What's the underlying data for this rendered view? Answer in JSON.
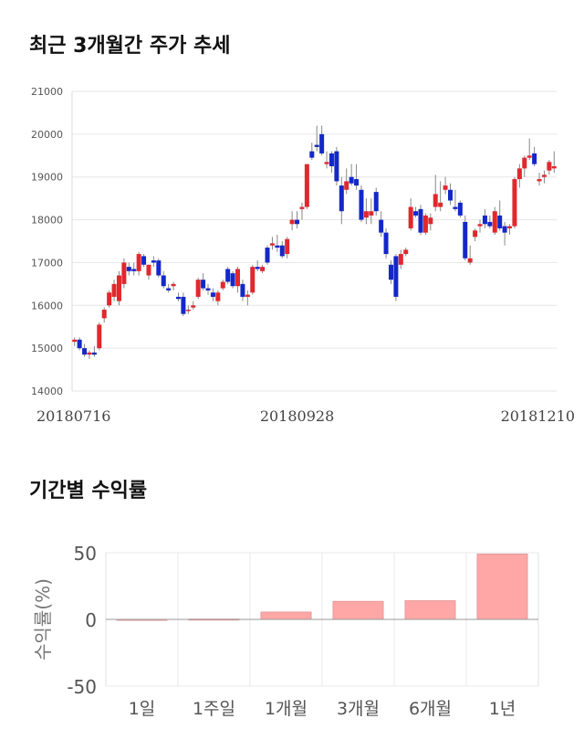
{
  "sections": {
    "price_title": "최근 3개월간 주가 추세",
    "return_title": "기간별 수익률"
  },
  "colors": {
    "up": "#e0282e",
    "down": "#1428c8",
    "wick": "#888888",
    "bar": "#ffa6a6",
    "bar_border": "#e89a9a"
  },
  "chart_data": [
    {
      "type": "candlestick",
      "title": "최근 3개월간 주가 추세",
      "ylim": [
        14000,
        21000
      ],
      "yticks": [
        14000,
        15000,
        16000,
        17000,
        18000,
        19000,
        20000,
        21000
      ],
      "x_tick_labels": [
        "20180716",
        "20180928",
        "20181210"
      ],
      "x_tick_index": [
        0,
        45,
        89
      ],
      "grid": true,
      "candles": [
        [
          15150,
          15250,
          15050,
          15200
        ],
        [
          15200,
          15250,
          14950,
          15000
        ],
        [
          15000,
          15100,
          14800,
          14850
        ],
        [
          14850,
          14950,
          14750,
          14900
        ],
        [
          14900,
          15050,
          14800,
          14850
        ],
        [
          15000,
          15600,
          14950,
          15550
        ],
        [
          15700,
          15950,
          15600,
          15900
        ],
        [
          16000,
          16350,
          15950,
          16300
        ],
        [
          16200,
          16600,
          16100,
          16500
        ],
        [
          16100,
          16800,
          16000,
          16700
        ],
        [
          16500,
          17100,
          16400,
          17000
        ],
        [
          16900,
          17000,
          16700,
          16800
        ],
        [
          16850,
          17000,
          16700,
          16800
        ],
        [
          16800,
          17250,
          16700,
          17200
        ],
        [
          17150,
          17200,
          16900,
          16950
        ],
        [
          16700,
          16950,
          16600,
          16950
        ],
        [
          17050,
          17150,
          16900,
          17000
        ],
        [
          17050,
          17100,
          16650,
          16700
        ],
        [
          16700,
          16800,
          16400,
          16450
        ],
        [
          16400,
          16500,
          16300,
          16350
        ],
        [
          16450,
          16550,
          16350,
          16500
        ],
        [
          16200,
          16300,
          16100,
          16150
        ],
        [
          16200,
          16300,
          15750,
          15800
        ],
        [
          15900,
          16000,
          15800,
          15900
        ],
        [
          15950,
          16100,
          15900,
          16000
        ],
        [
          16200,
          16650,
          16150,
          16600
        ],
        [
          16600,
          16750,
          16350,
          16400
        ],
        [
          16400,
          16500,
          16250,
          16350
        ],
        [
          16300,
          16400,
          16100,
          16200
        ],
        [
          16100,
          16350,
          16000,
          16300
        ],
        [
          16400,
          16600,
          16350,
          16550
        ],
        [
          16850,
          16900,
          16500,
          16550
        ],
        [
          16750,
          16800,
          16400,
          16450
        ],
        [
          16450,
          16900,
          16300,
          16850
        ],
        [
          16500,
          16600,
          16100,
          16200
        ],
        [
          16200,
          16350,
          16000,
          16250
        ],
        [
          16300,
          16950,
          16250,
          16900
        ],
        [
          16900,
          17050,
          16800,
          16850
        ],
        [
          16800,
          16950,
          16750,
          16900
        ],
        [
          17350,
          17400,
          16950,
          17000
        ],
        [
          17400,
          17600,
          17300,
          17450
        ],
        [
          17400,
          17650,
          17250,
          17350
        ],
        [
          17400,
          17500,
          17100,
          17150
        ],
        [
          17200,
          17600,
          17100,
          17550
        ],
        [
          17900,
          18200,
          17750,
          18000
        ],
        [
          18000,
          18200,
          17800,
          17900
        ],
        [
          18250,
          18400,
          18000,
          18300
        ],
        [
          18300,
          19300,
          18250,
          19300
        ],
        [
          19600,
          19800,
          19400,
          19450
        ],
        [
          19750,
          20200,
          19600,
          19700
        ],
        [
          20000,
          20200,
          19500,
          19550
        ],
        [
          19300,
          19600,
          19200,
          19350
        ],
        [
          19550,
          19600,
          19100,
          19250
        ],
        [
          19600,
          19700,
          18800,
          18900
        ],
        [
          18800,
          19000,
          17900,
          18200
        ],
        [
          18700,
          19200,
          18600,
          18900
        ],
        [
          19000,
          19300,
          18800,
          18850
        ],
        [
          18950,
          19300,
          18700,
          18800
        ],
        [
          18700,
          18800,
          17950,
          18000
        ],
        [
          18050,
          18500,
          17900,
          18200
        ],
        [
          18100,
          18500,
          17900,
          18200
        ],
        [
          18650,
          18750,
          18100,
          18200
        ],
        [
          18000,
          18200,
          17600,
          17700
        ],
        [
          17700,
          17800,
          17100,
          17200
        ],
        [
          16950,
          17050,
          16500,
          16600
        ],
        [
          17150,
          17200,
          16100,
          16200
        ],
        [
          16950,
          17300,
          16850,
          17200
        ],
        [
          17200,
          17350,
          17150,
          17300
        ],
        [
          17800,
          18500,
          17750,
          18300
        ],
        [
          18200,
          18300,
          18050,
          18100
        ],
        [
          18250,
          18350,
          17650,
          17700
        ],
        [
          17700,
          18150,
          17650,
          18100
        ],
        [
          17900,
          18150,
          17750,
          18050
        ],
        [
          18300,
          19050,
          18200,
          18600
        ],
        [
          18300,
          18900,
          18200,
          18400
        ],
        [
          18700,
          19000,
          18600,
          18800
        ],
        [
          18700,
          18850,
          18350,
          18450
        ],
        [
          18300,
          18700,
          18200,
          18250
        ],
        [
          18400,
          18450,
          18050,
          18100
        ],
        [
          17950,
          18100,
          17050,
          17100
        ],
        [
          17000,
          17400,
          16950,
          17100
        ],
        [
          17600,
          17800,
          17500,
          17750
        ],
        [
          17850,
          18000,
          17700,
          17900
        ],
        [
          18100,
          18250,
          17800,
          17900
        ],
        [
          17950,
          18100,
          17800,
          17850
        ],
        [
          17700,
          18300,
          17650,
          18200
        ],
        [
          18100,
          18450,
          17750,
          17800
        ],
        [
          17850,
          17950,
          17400,
          17700
        ],
        [
          17800,
          17900,
          17650,
          17850
        ],
        [
          17850,
          19000,
          17800,
          18950
        ],
        [
          18950,
          19300,
          18750,
          19200
        ],
        [
          19200,
          19500,
          19000,
          19450
        ],
        [
          19450,
          19900,
          19400,
          19500
        ],
        [
          19550,
          19700,
          19250,
          19300
        ],
        [
          18900,
          19100,
          18800,
          18950
        ],
        [
          19000,
          19150,
          18850,
          19050
        ],
        [
          19150,
          19400,
          19050,
          19350
        ],
        [
          19200,
          19600,
          19100,
          19250
        ]
      ]
    },
    {
      "type": "bar",
      "title": "기간별 수익률",
      "ylabel": "수익률(%)",
      "categories": [
        "1일",
        "1주일",
        "1개월",
        "3개월",
        "6개월",
        "1년"
      ],
      "values": [
        0,
        0.2,
        5.5,
        13.5,
        14.0,
        49.0
      ],
      "ylim": [
        -50,
        50
      ],
      "yticks": [
        50,
        0,
        -50
      ],
      "grid": true
    }
  ]
}
